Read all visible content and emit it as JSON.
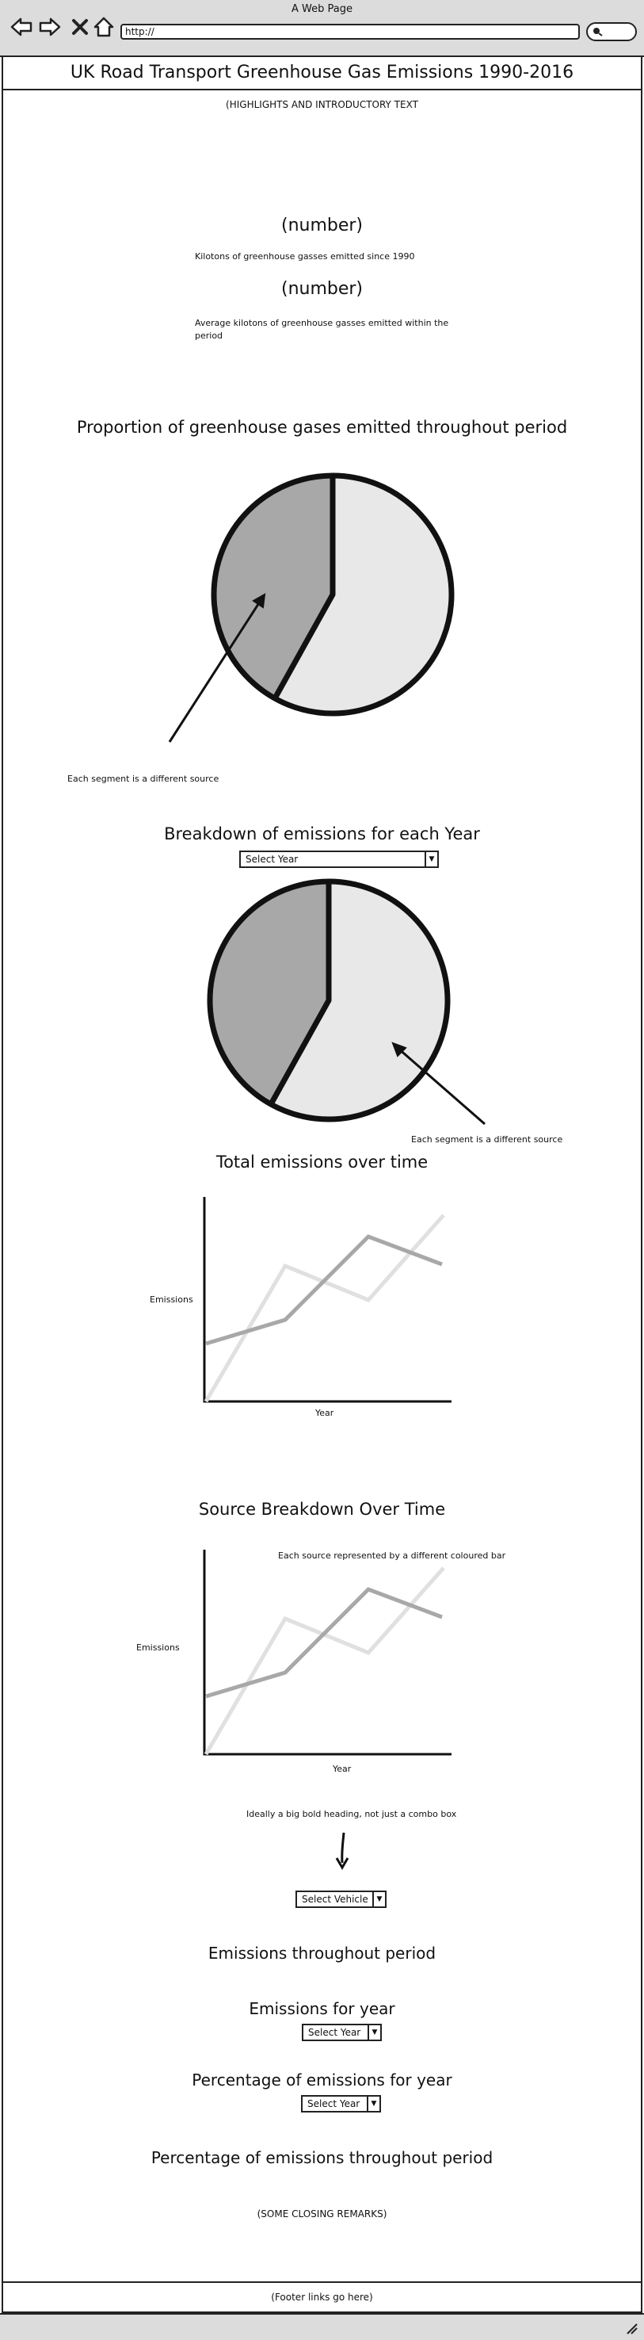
{
  "browser": {
    "window_title": "A Web Page",
    "url": "http://"
  },
  "page": {
    "title": "UK Road Transport Greenhouse Gas Emissions 1990-2016",
    "intro": "(HIGHLIGHTS AND INTRODUCTORY TEXT",
    "stat1": {
      "number": "(number)",
      "label": "Kilotons of greenhouse gasses emitted since 1990"
    },
    "stat2": {
      "number": "(number)",
      "label_line1": "Average kilotons of greenhouse gasses emitted within the",
      "label_line2": "period"
    },
    "section_proportion": {
      "heading": "Proportion of greenhouse gases emitted throughout period",
      "annotation": "Each segment is a different source"
    },
    "section_breakdown_year": {
      "heading": "Breakdown of emissions for each Year",
      "select_value": "Select Year",
      "annotation": "Each segment is a different source"
    },
    "section_total": {
      "heading": "Total emissions over time",
      "ylabel": "Emissions",
      "xlabel": "Year"
    },
    "section_source": {
      "heading": "Source Breakdown Over Time",
      "note": "Each source represented by a different coloured bar",
      "ylabel": "Emissions",
      "xlabel": "Year"
    },
    "vehicle_note": "Ideally a big bold heading, not just a combo box",
    "vehicle_select": "Select Vehicle",
    "emissions_throughout": "Emissions throughout period",
    "emissions_for_year": {
      "heading": "Emissions for year",
      "select_value": "Select Year"
    },
    "percentage_for_year": {
      "heading": "Percentage of emissions for year",
      "select_value": "Select Year"
    },
    "percentage_throughout": "Percentage of emissions throughout period",
    "closing": "(SOME CLOSING REMARKS)",
    "footer": "(Footer links go here)"
  },
  "icons": {
    "back": "back-arrow-icon",
    "forward": "forward-arrow-icon",
    "stop": "close-icon",
    "home": "home-icon",
    "search": "search-icon"
  },
  "colors": {
    "dark_segment": "#a8a8a8",
    "light_segment": "#e8e8e8",
    "line_dark": "#a8a8a8",
    "line_light": "#e0e0e0",
    "outline": "#111111"
  }
}
